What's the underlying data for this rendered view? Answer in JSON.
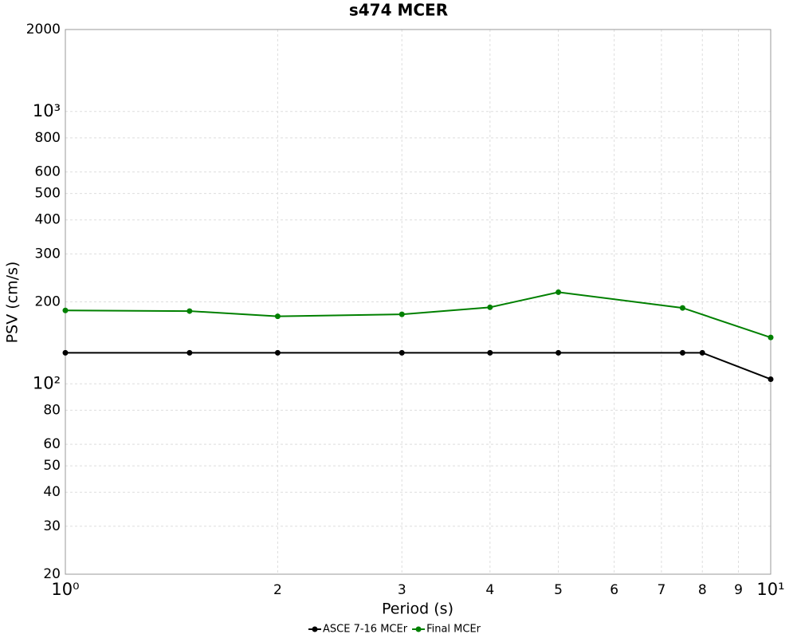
{
  "chart_data": {
    "type": "line",
    "title": "s474 MCER",
    "x_label": "Period (s)",
    "y_label": "PSV (cm/s)",
    "xscale": "log",
    "yscale": "log",
    "grid": true,
    "legend": "bottom",
    "xlim": [
      1,
      10
    ],
    "ylim": [
      20,
      2000
    ],
    "xticks": [
      {
        "value": 1,
        "label": "10⁰"
      },
      2,
      3,
      4,
      5,
      6,
      7,
      8,
      9,
      {
        "value": 10,
        "label": "10¹"
      }
    ],
    "yticks": [
      2000,
      {
        "value": 1000,
        "label": "10³"
      },
      800,
      600,
      500,
      400,
      300,
      200,
      {
        "value": 100,
        "label": "10²"
      },
      80,
      60,
      50,
      40,
      30,
      20
    ],
    "series": [
      {
        "name": "ASCE 7-16 MCEr",
        "color": "#000000",
        "x": [
          1,
          1.5,
          2,
          3,
          4,
          5,
          7.5,
          8,
          10
        ],
        "values": [
          130,
          130,
          130,
          130,
          130,
          130,
          130,
          130,
          104
        ]
      },
      {
        "name": "Final MCEr",
        "color": "#008000",
        "x": [
          1,
          1.5,
          2,
          3,
          4,
          5,
          7.5,
          10
        ],
        "values": [
          186,
          185,
          177,
          180,
          191,
          217,
          190,
          148
        ]
      }
    ]
  }
}
